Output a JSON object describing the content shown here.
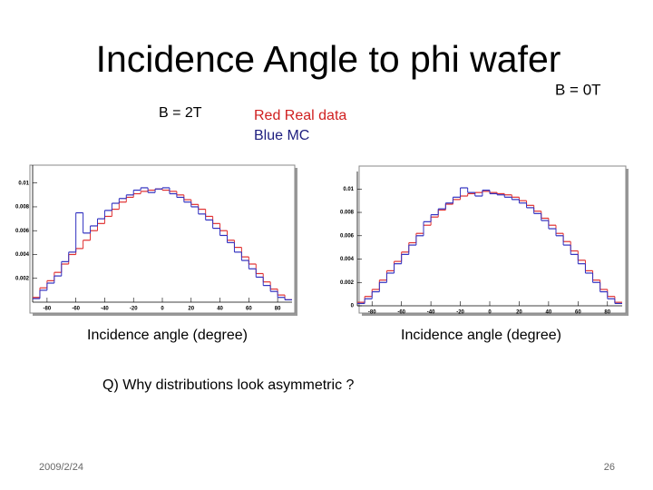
{
  "slide": {
    "title": "Incidence Angle to phi wafer",
    "field_right": "B  = 0T",
    "field_left": "B = 2T",
    "legend_red": "Red Real data",
    "legend_blue": "Blue MC",
    "question": "Q) Why distributions look asymmetric ?",
    "date": "2009/2/24",
    "page": "26"
  },
  "chart_data": [
    {
      "type": "histogram",
      "xlabel": "Incidence angle (degree)",
      "bins": [
        -90,
        -85,
        -80,
        -75,
        -70,
        -65,
        -60,
        -55,
        -50,
        -45,
        -40,
        -35,
        -30,
        -25,
        -20,
        -15,
        -10,
        -5,
        0,
        5,
        10,
        15,
        20,
        25,
        30,
        35,
        40,
        45,
        50,
        55,
        60,
        65,
        70,
        75,
        80,
        85,
        90
      ],
      "series": [
        {
          "color": "#e03030",
          "values": [
            0.0004,
            0.0012,
            0.0018,
            0.0025,
            0.0032,
            0.004,
            0.0045,
            0.0052,
            0.006,
            0.0066,
            0.0072,
            0.0078,
            0.0084,
            0.0088,
            0.0091,
            0.0093,
            0.0094,
            0.0095,
            0.0094,
            0.0093,
            0.009,
            0.0086,
            0.0082,
            0.0078,
            0.0072,
            0.0066,
            0.006,
            0.0052,
            0.0046,
            0.0038,
            0.0032,
            0.0024,
            0.0017,
            0.0011,
            0.0006,
            0.0002
          ]
        },
        {
          "color": "#3030c0",
          "values": [
            0.0003,
            0.001,
            0.0016,
            0.0022,
            0.0034,
            0.0042,
            0.0075,
            0.0058,
            0.0064,
            0.007,
            0.0077,
            0.0083,
            0.0087,
            0.009,
            0.0094,
            0.0096,
            0.0092,
            0.0095,
            0.0096,
            0.0091,
            0.0088,
            0.0084,
            0.008,
            0.0074,
            0.0069,
            0.0062,
            0.0056,
            0.005,
            0.0042,
            0.0035,
            0.0028,
            0.0021,
            0.0014,
            0.0009,
            0.0004,
            0.0002
          ]
        }
      ],
      "xlim": [
        -90,
        90
      ],
      "ylim": [
        0,
        0.0115
      ],
      "xticks": [
        -80,
        -60,
        -40,
        -20,
        0,
        20,
        40,
        60,
        80
      ],
      "yticks": [
        0.002,
        0.004,
        0.006,
        0.008,
        0.01
      ]
    },
    {
      "type": "histogram",
      "xlabel": "Incidence angle (degree)",
      "bins": [
        -90,
        -85,
        -80,
        -75,
        -70,
        -65,
        -60,
        -55,
        -50,
        -45,
        -40,
        -35,
        -30,
        -25,
        -20,
        -15,
        -10,
        -5,
        0,
        5,
        10,
        15,
        20,
        25,
        30,
        35,
        40,
        45,
        50,
        55,
        60,
        65,
        70,
        75,
        80,
        85,
        90
      ],
      "series": [
        {
          "color": "#e03030",
          "values": [
            0.0003,
            0.0008,
            0.0014,
            0.0022,
            0.003,
            0.0038,
            0.0046,
            0.0054,
            0.0062,
            0.0069,
            0.0076,
            0.0082,
            0.0087,
            0.0091,
            0.0094,
            0.0096,
            0.0097,
            0.0098,
            0.0097,
            0.0096,
            0.0095,
            0.0093,
            0.009,
            0.0086,
            0.0081,
            0.0075,
            0.0069,
            0.0062,
            0.0055,
            0.0047,
            0.0039,
            0.003,
            0.0022,
            0.0014,
            0.0008,
            0.0003
          ]
        },
        {
          "color": "#3030c0",
          "values": [
            0.0002,
            0.0006,
            0.0012,
            0.002,
            0.0028,
            0.0036,
            0.0044,
            0.0052,
            0.006,
            0.0072,
            0.0078,
            0.0083,
            0.0088,
            0.0093,
            0.0101,
            0.0097,
            0.0094,
            0.0099,
            0.0096,
            0.0095,
            0.0093,
            0.0091,
            0.0088,
            0.0084,
            0.0079,
            0.0073,
            0.0066,
            0.006,
            0.0052,
            0.0044,
            0.0036,
            0.0028,
            0.002,
            0.0012,
            0.0006,
            0.0002
          ]
        }
      ],
      "xlim": [
        -90,
        90
      ],
      "ylim": [
        0,
        0.0115
      ],
      "xticks": [
        -80,
        -60,
        -40,
        -20,
        0,
        20,
        40,
        60,
        80
      ],
      "yticks": [
        0,
        0.002,
        0.004,
        0.006,
        0.008,
        0.01
      ]
    }
  ]
}
